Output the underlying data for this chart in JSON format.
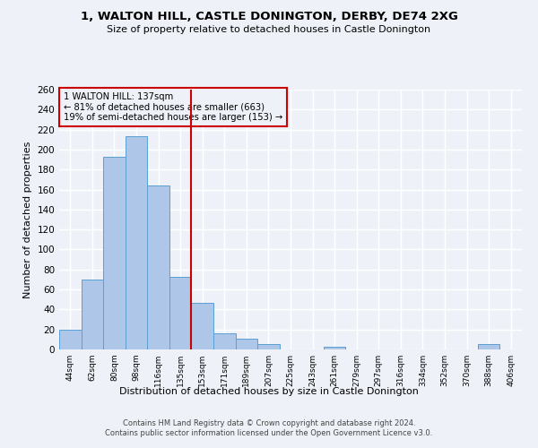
{
  "title": "1, WALTON HILL, CASTLE DONINGTON, DERBY, DE74 2XG",
  "subtitle": "Size of property relative to detached houses in Castle Donington",
  "xlabel": "Distribution of detached houses by size in Castle Donington",
  "ylabel": "Number of detached properties",
  "bin_labels": [
    "44sqm",
    "62sqm",
    "80sqm",
    "98sqm",
    "116sqm",
    "135sqm",
    "153sqm",
    "171sqm",
    "189sqm",
    "207sqm",
    "225sqm",
    "243sqm",
    "261sqm",
    "279sqm",
    "297sqm",
    "316sqm",
    "334sqm",
    "352sqm",
    "370sqm",
    "388sqm",
    "406sqm"
  ],
  "bar_heights": [
    20,
    70,
    193,
    213,
    164,
    73,
    47,
    16,
    11,
    5,
    0,
    0,
    3,
    0,
    0,
    0,
    0,
    0,
    0,
    5,
    0
  ],
  "bar_color": "#aec6e8",
  "bar_edge_color": "#5a9fd4",
  "vline_x": 5.5,
  "vline_color": "#cc0000",
  "annotation_line1": "1 WALTON HILL: 137sqm",
  "annotation_line2": "← 81% of detached houses are smaller (663)",
  "annotation_line3": "19% of semi-detached houses are larger (153) →",
  "annotation_box_color": "#cc0000",
  "ylim": [
    0,
    260
  ],
  "yticks": [
    0,
    20,
    40,
    60,
    80,
    100,
    120,
    140,
    160,
    180,
    200,
    220,
    240,
    260
  ],
  "footer_line1": "Contains HM Land Registry data © Crown copyright and database right 2024.",
  "footer_line2": "Contains public sector information licensed under the Open Government Licence v3.0.",
  "bg_color": "#eef2f8",
  "grid_color": "#ffffff"
}
